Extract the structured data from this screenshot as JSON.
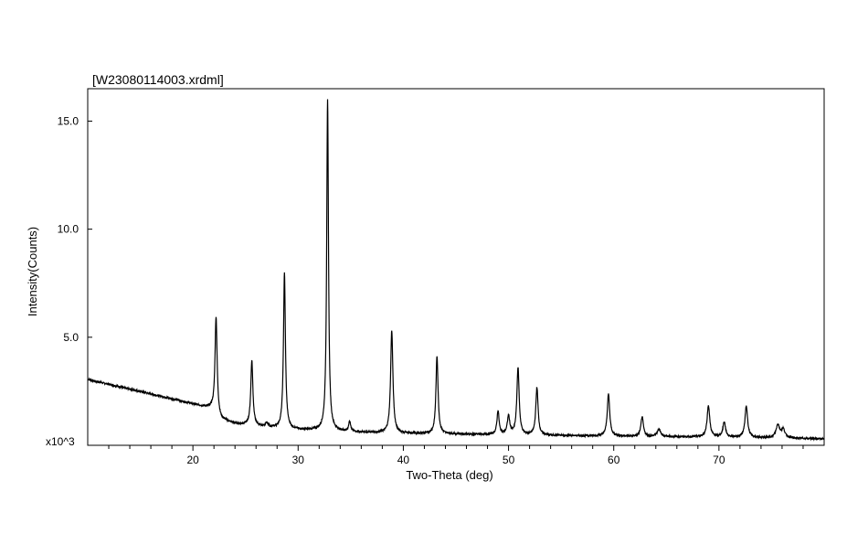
{
  "chart_data": {
    "type": "line",
    "title": "[W23080114003.xrdml]",
    "xlabel": "Two-Theta (deg)",
    "ylabel": "Intensity(Counts)",
    "y_multiplier_label": "x10^3",
    "xlim": [
      10.0,
      80.0
    ],
    "ylim": [
      0.0,
      16.5
    ],
    "x_ticks": [
      20,
      30,
      40,
      50,
      60,
      70
    ],
    "y_ticks": [
      {
        "value": 5.0,
        "label": "5.0"
      },
      {
        "value": 10.0,
        "label": "10.0"
      },
      {
        "value": 15.0,
        "label": "15.0"
      }
    ],
    "grid": false,
    "line_color": "#000000",
    "series": [
      {
        "background": [
          [
            10.0,
            3.05
          ],
          [
            14.0,
            2.6
          ],
          [
            18.0,
            2.15
          ],
          [
            21.8,
            1.7
          ],
          [
            22.6,
            1.2
          ],
          [
            24.0,
            1.0
          ],
          [
            27.0,
            0.82
          ],
          [
            30.0,
            0.72
          ],
          [
            33.0,
            0.66
          ],
          [
            36.0,
            0.6
          ],
          [
            40.0,
            0.55
          ],
          [
            45.0,
            0.52
          ],
          [
            50.0,
            0.48
          ],
          [
            55.0,
            0.45
          ],
          [
            60.0,
            0.42
          ],
          [
            65.0,
            0.4
          ],
          [
            70.0,
            0.38
          ],
          [
            75.0,
            0.34
          ],
          [
            80.0,
            0.3
          ]
        ],
        "peaks": [
          {
            "x": 22.2,
            "height": 4.5,
            "width": 0.12
          },
          {
            "x": 25.6,
            "height": 3.0,
            "width": 0.12
          },
          {
            "x": 27.0,
            "height": 0.2,
            "width": 0.15
          },
          {
            "x": 28.7,
            "height": 7.2,
            "width": 0.11
          },
          {
            "x": 32.8,
            "height": 15.3,
            "width": 0.1
          },
          {
            "x": 34.9,
            "height": 0.45,
            "width": 0.12
          },
          {
            "x": 38.9,
            "height": 4.75,
            "width": 0.13
          },
          {
            "x": 43.2,
            "height": 3.6,
            "width": 0.12
          },
          {
            "x": 49.0,
            "height": 1.1,
            "width": 0.12
          },
          {
            "x": 50.0,
            "height": 0.85,
            "width": 0.14
          },
          {
            "x": 50.9,
            "height": 3.1,
            "width": 0.13
          },
          {
            "x": 52.7,
            "height": 2.2,
            "width": 0.13
          },
          {
            "x": 59.5,
            "height": 1.95,
            "width": 0.14
          },
          {
            "x": 62.7,
            "height": 0.9,
            "width": 0.14
          },
          {
            "x": 64.3,
            "height": 0.35,
            "width": 0.18
          },
          {
            "x": 69.0,
            "height": 1.45,
            "width": 0.15
          },
          {
            "x": 70.5,
            "height": 0.7,
            "width": 0.15
          },
          {
            "x": 72.6,
            "height": 1.45,
            "width": 0.15
          },
          {
            "x": 75.6,
            "height": 0.6,
            "width": 0.2
          },
          {
            "x": 76.1,
            "height": 0.4,
            "width": 0.2
          }
        ]
      }
    ]
  }
}
